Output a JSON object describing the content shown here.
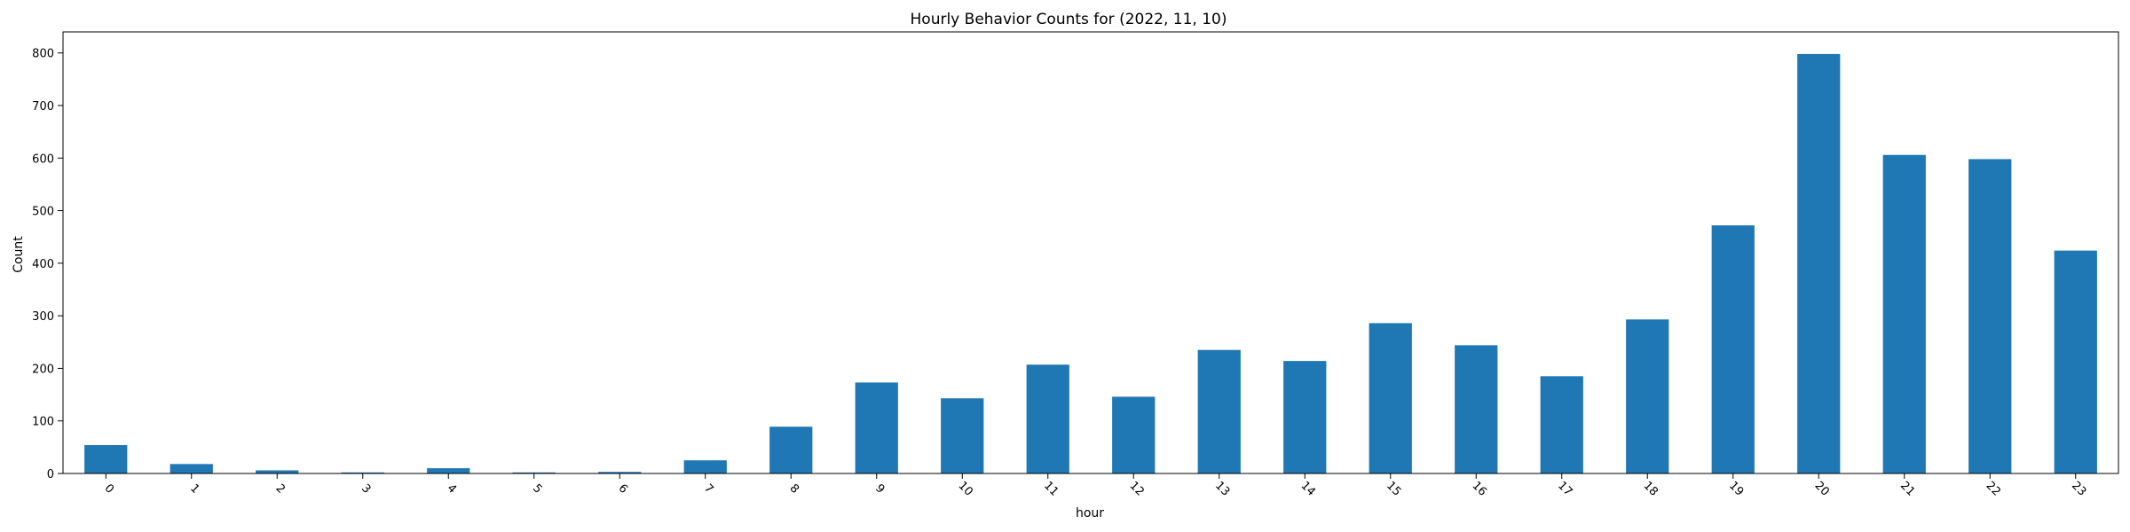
{
  "chart_data": {
    "type": "bar",
    "title": "Hourly Behavior Counts for (2022, 11, 10)",
    "xlabel": "hour",
    "ylabel": "Count",
    "categories": [
      "0",
      "1",
      "2",
      "3",
      "4",
      "5",
      "6",
      "7",
      "8",
      "9",
      "10",
      "11",
      "12",
      "13",
      "14",
      "15",
      "16",
      "17",
      "18",
      "19",
      "20",
      "21",
      "22",
      "23"
    ],
    "values": [
      54,
      18,
      6,
      2,
      10,
      2,
      3,
      25,
      89,
      173,
      143,
      207,
      146,
      235,
      214,
      286,
      244,
      185,
      293,
      472,
      798,
      606,
      598,
      424
    ],
    "ylim": [
      0,
      840
    ],
    "yticks": [
      0,
      100,
      200,
      300,
      400,
      500,
      600,
      700,
      800
    ],
    "bar_color": "#1f77b4",
    "grid": false,
    "legend": "none",
    "xtick_rotation": "45 degrees"
  }
}
